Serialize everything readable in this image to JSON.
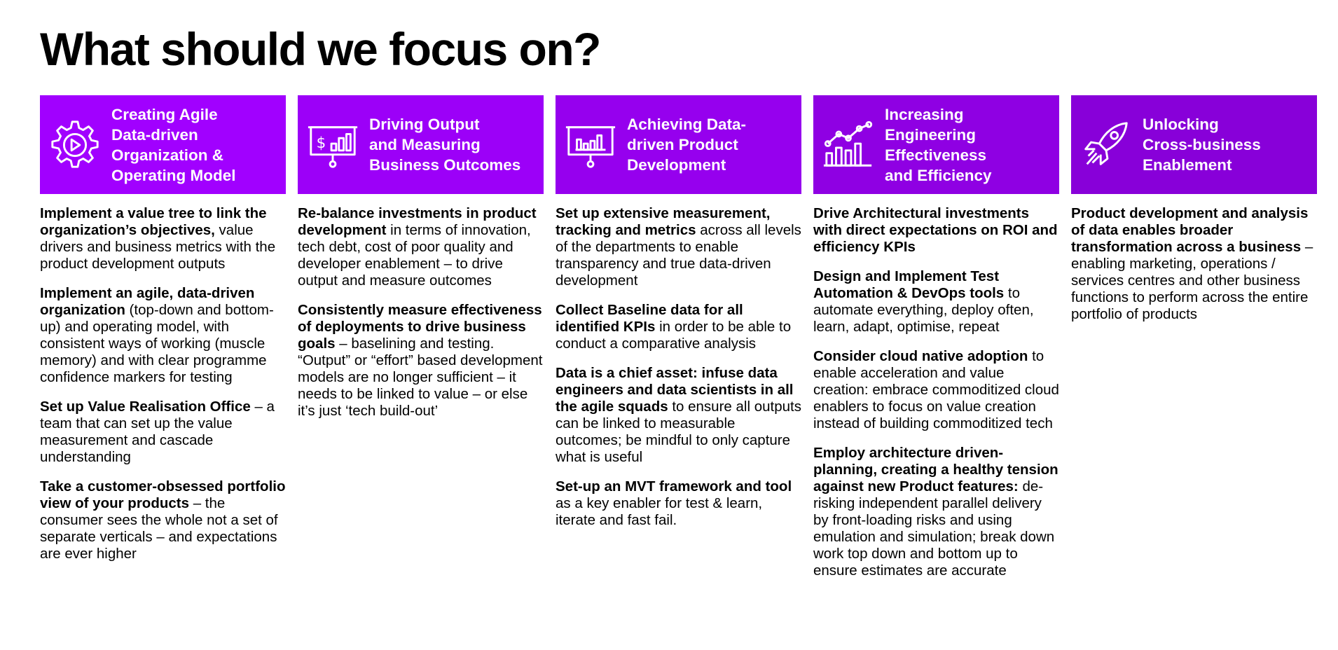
{
  "title": "What should we focus on?",
  "columns": [
    {
      "icon": "gear-play-icon",
      "heading_lines": [
        "Creating Agile",
        "Data-driven",
        "Organization &",
        "Operating Model"
      ],
      "items": [
        {
          "bold": "Implement a value tree to link the organization’s objectives,",
          "text": " value drivers and business metrics with the product development outputs"
        },
        {
          "bold": "Implement an agile, data-driven organization",
          "text": " (top-down and bottom-up) and operating model, with consistent ways of working (muscle memory) and with clear programme confidence markers for testing"
        },
        {
          "bold": "Set up Value Realisation Office",
          "text": " – a team that can set up the value measurement and cascade understanding"
        },
        {
          "bold": "Take a customer-obsessed portfolio view of your products",
          "text": " – the consumer sees the whole not a set of separate verticals – and expectations are ever higher"
        }
      ]
    },
    {
      "icon": "presentation-dollar-chart-icon",
      "heading_lines": [
        "Driving Output",
        "and Measuring",
        "Business Outcomes"
      ],
      "items": [
        {
          "bold": "Re-balance investments in product development",
          "text": " in terms of innovation, tech debt, cost of poor quality and developer enablement – to drive output and measure outcomes"
        },
        {
          "bold": "Consistently measure effectiveness of deployments to drive business goals",
          "text": " – baselining and testing. “Output” or “effort” based development models are no longer sufficient – it needs to be linked to value – or else it’s just ‘tech build-out’"
        }
      ]
    },
    {
      "icon": "presentation-bar-chart-icon",
      "heading_lines": [
        "Achieving Data-",
        "driven Product",
        "Development"
      ],
      "items": [
        {
          "bold": "Set up extensive measurement, tracking and metrics",
          "text": " across all levels of the departments to enable transparency and true data-driven development"
        },
        {
          "bold": "Collect Baseline data for all identified KPIs",
          "text": " in order to be able to conduct a comparative analysis"
        },
        {
          "bold": "Data is a chief asset: infuse data engineers and data scientists in all the agile squads",
          "text": " to ensure all outputs can be linked to measurable outcomes; be mindful to only capture what is useful"
        },
        {
          "bold": "Set-up an MVT framework and tool",
          "text": " as a key enabler for test & learn, iterate and fast fail."
        }
      ]
    },
    {
      "icon": "growth-chart-icon",
      "heading_lines": [
        "Increasing",
        "Engineering",
        "Effectiveness",
        "and Efficiency"
      ],
      "items": [
        {
          "bold": "Drive Architectural investments with direct expectations on ROI and efficiency KPIs",
          "text": ""
        },
        {
          "bold": "Design and Implement Test Automation & DevOps tools",
          "text": " to automate everything, deploy often, learn, adapt, optimise, repeat"
        },
        {
          "bold": "Consider cloud native adoption",
          "text": " to enable acceleration and value creation: embrace commoditized cloud enablers to focus on value creation instead of building commoditized tech"
        },
        {
          "bold": "Employ architecture driven-planning, creating a healthy tension against new Product features:",
          "text": " de-risking independent parallel delivery by front-loading risks and using emulation and simulation; break down work top down and bottom up to ensure estimates are accurate"
        }
      ]
    },
    {
      "icon": "rocket-icon",
      "heading_lines": [
        "Unlocking",
        "Cross-business",
        "Enablement"
      ],
      "items": [
        {
          "bold": "Product development and analysis of data enables broader transformation across a business",
          "text": " – enabling marketing, operations / services centres and other business functions to perform across the entire portfolio of products"
        }
      ]
    }
  ]
}
